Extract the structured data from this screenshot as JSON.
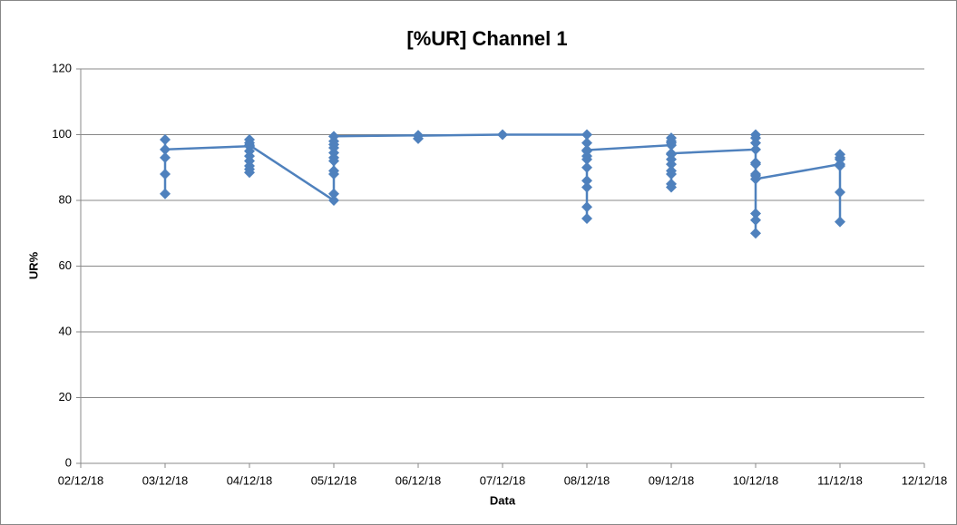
{
  "chart_data": {
    "type": "line",
    "title": "[%UR] Channel 1",
    "x_label": "Data",
    "y_label": "UR%",
    "xlim": [
      "02/12/18",
      "12/12/18"
    ],
    "xticks": [
      "02/12/18",
      "03/12/18",
      "04/12/18",
      "05/12/18",
      "06/12/18",
      "07/12/18",
      "08/12/18",
      "09/12/18",
      "10/12/18",
      "11/12/18",
      "12/12/18"
    ],
    "ylim": [
      0,
      120
    ],
    "yticks": [
      0,
      20,
      40,
      60,
      80,
      100,
      120
    ],
    "grid": true,
    "series": [
      {
        "name": "UR%",
        "color": "#4f81bd",
        "x": [
          "03/12/18",
          "03/12/18",
          "03/12/18",
          "03/12/18",
          "03/12/18",
          "04/12/18",
          "04/12/18",
          "04/12/18",
          "04/12/18",
          "04/12/18",
          "04/12/18",
          "04/12/18",
          "04/12/18",
          "04/12/18",
          "04/12/18",
          "05/12/18",
          "05/12/18",
          "05/12/18",
          "05/12/18",
          "05/12/18",
          "05/12/18",
          "05/12/18",
          "05/12/18",
          "05/12/18",
          "05/12/18",
          "05/12/18",
          "06/12/18",
          "06/12/18",
          "06/12/18",
          "07/12/18",
          "08/12/18",
          "08/12/18",
          "08/12/18",
          "08/12/18",
          "08/12/18",
          "08/12/18",
          "08/12/18",
          "08/12/18",
          "08/12/18",
          "08/12/18",
          "08/12/18",
          "09/12/18",
          "09/12/18",
          "09/12/18",
          "09/12/18",
          "09/12/18",
          "09/12/18",
          "09/12/18",
          "09/12/18",
          "09/12/18",
          "09/12/18",
          "09/12/18",
          "09/12/18",
          "10/12/18",
          "10/12/18",
          "10/12/18",
          "10/12/18",
          "10/12/18",
          "10/12/18",
          "10/12/18",
          "10/12/18",
          "10/12/18",
          "10/12/18",
          "10/12/18",
          "10/12/18",
          "11/12/18",
          "11/12/18",
          "11/12/18",
          "11/12/18",
          "11/12/18",
          "11/12/18",
          "11/12/18"
        ],
        "values": [
          98.5,
          93,
          88,
          82,
          95.5,
          96.5,
          98.5,
          97.5,
          95,
          93.5,
          92,
          90.5,
          89.5,
          88.5,
          96.8,
          80,
          82,
          88,
          89,
          92,
          93,
          94.5,
          96,
          97,
          98,
          99.5,
          99.8,
          98.8,
          99.7,
          100,
          100,
          97.5,
          95,
          93.5,
          92.5,
          90,
          86,
          84,
          78,
          74.5,
          95.3,
          96.8,
          99,
          98,
          97.5,
          94,
          92.5,
          91,
          89,
          88,
          85,
          84,
          94.3,
          95.5,
          100,
          99,
          97.5,
          91.5,
          91,
          88,
          87.5,
          76,
          74,
          70,
          86.5,
          91,
          94,
          93,
          92.5,
          90.5,
          82.5,
          73.5
        ]
      }
    ]
  }
}
